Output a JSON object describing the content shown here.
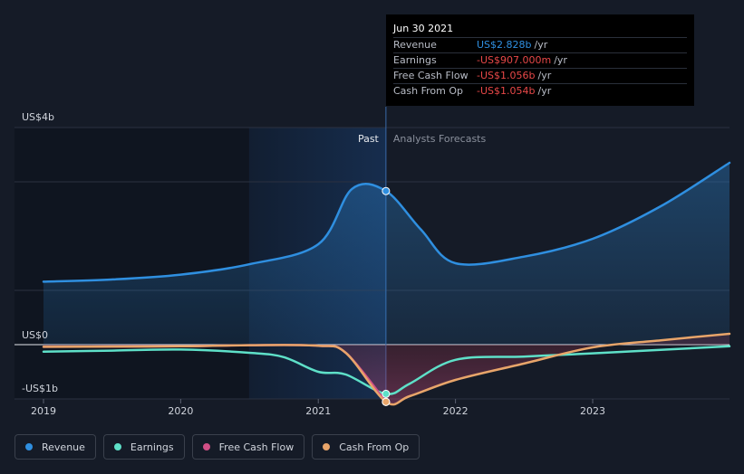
{
  "chart_data": {
    "type": "line",
    "x_ticks": [
      "2019",
      "2020",
      "2021",
      "2022",
      "2023"
    ],
    "y_ticks": [
      "US$4b",
      "US$0",
      "-US$1b"
    ],
    "ylim": [
      -1,
      4
    ],
    "grid": true,
    "regions": {
      "past_label": "Past",
      "forecast_label": "Analysts Forecasts",
      "divider_date": "2021-06-30"
    },
    "series": [
      {
        "name": "Revenue",
        "color": "#2f8fe0",
        "points": [
          [
            "2019-01-01",
            1.16
          ],
          [
            "2019-07-01",
            1.2
          ],
          [
            "2020-01-01",
            1.29
          ],
          [
            "2020-07-01",
            1.48
          ],
          [
            "2021-01-01",
            1.85
          ],
          [
            "2021-04-01",
            2.87
          ],
          [
            "2021-06-30",
            2.83
          ],
          [
            "2021-10-01",
            2.12
          ],
          [
            "2022-01-01",
            1.5
          ],
          [
            "2022-07-01",
            1.62
          ],
          [
            "2023-01-01",
            1.95
          ],
          [
            "2023-07-01",
            2.55
          ],
          [
            "2023-12-31",
            3.35
          ]
        ]
      },
      {
        "name": "Earnings",
        "color": "#5ee0c8",
        "points": [
          [
            "2019-01-01",
            -0.13
          ],
          [
            "2019-07-01",
            -0.11
          ],
          [
            "2020-01-01",
            -0.09
          ],
          [
            "2020-07-01",
            -0.15
          ],
          [
            "2020-10-01",
            -0.23
          ],
          [
            "2021-01-01",
            -0.5
          ],
          [
            "2021-03-15",
            -0.55
          ],
          [
            "2021-06-30",
            -0.907
          ],
          [
            "2021-09-01",
            -0.72
          ],
          [
            "2022-01-01",
            -0.28
          ],
          [
            "2022-07-01",
            -0.22
          ],
          [
            "2023-01-01",
            -0.16
          ],
          [
            "2023-12-31",
            -0.03
          ]
        ]
      },
      {
        "name": "Free Cash Flow",
        "color": "#d14f86",
        "points": [
          [
            "2019-01-01",
            -0.04
          ],
          [
            "2019-07-01",
            -0.035
          ],
          [
            "2020-01-01",
            -0.03
          ],
          [
            "2020-07-01",
            -0.01
          ],
          [
            "2021-01-01",
            -0.02
          ],
          [
            "2021-03-15",
            -0.15
          ],
          [
            "2021-06-30",
            -1.056
          ]
        ]
      },
      {
        "name": "Cash From Op",
        "color": "#e8a56a",
        "points": [
          [
            "2019-01-01",
            -0.04
          ],
          [
            "2019-07-01",
            -0.035
          ],
          [
            "2020-01-01",
            -0.03
          ],
          [
            "2020-07-01",
            -0.01
          ],
          [
            "2021-01-01",
            -0.02
          ],
          [
            "2021-03-15",
            -0.15
          ],
          [
            "2021-06-30",
            -1.054
          ],
          [
            "2021-09-01",
            -0.95
          ],
          [
            "2022-01-01",
            -0.65
          ],
          [
            "2022-07-01",
            -0.35
          ],
          [
            "2023-01-01",
            -0.05
          ],
          [
            "2023-07-01",
            0.08
          ],
          [
            "2023-12-31",
            0.2
          ]
        ]
      }
    ],
    "tooltip": {
      "date": "Jun 30 2021",
      "rows": [
        {
          "label": "Revenue",
          "value": "US$2.828b",
          "unit": "/yr",
          "color": "#2f8fe0"
        },
        {
          "label": "Earnings",
          "value": "-US$907.000m",
          "unit": "/yr",
          "color": "#e84848"
        },
        {
          "label": "Free Cash Flow",
          "value": "-US$1.056b",
          "unit": "/yr",
          "color": "#e84848"
        },
        {
          "label": "Cash From Op",
          "value": "-US$1.054b",
          "unit": "/yr",
          "color": "#e84848"
        }
      ]
    }
  },
  "legend": [
    {
      "label": "Revenue",
      "color": "#2f8fe0"
    },
    {
      "label": "Earnings",
      "color": "#5ee0c8"
    },
    {
      "label": "Free Cash Flow",
      "color": "#d14f86"
    },
    {
      "label": "Cash From Op",
      "color": "#e8a56a"
    }
  ]
}
